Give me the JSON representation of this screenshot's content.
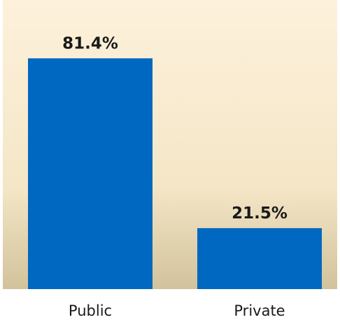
{
  "chart_data": {
    "type": "bar",
    "categories": [
      "Public",
      "Private"
    ],
    "values": [
      81.4,
      21.5
    ],
    "data_labels": [
      "81.4%",
      "21.5%"
    ],
    "title": "",
    "xlabel": "",
    "ylabel": "",
    "ylim": [
      0,
      100
    ],
    "grid": false,
    "legend": "none",
    "colors": {
      "bar": "#0068c0",
      "background_top": "#fdf1dc",
      "background_bottom": "#d2c29c",
      "text": "#1a1a1a"
    }
  }
}
